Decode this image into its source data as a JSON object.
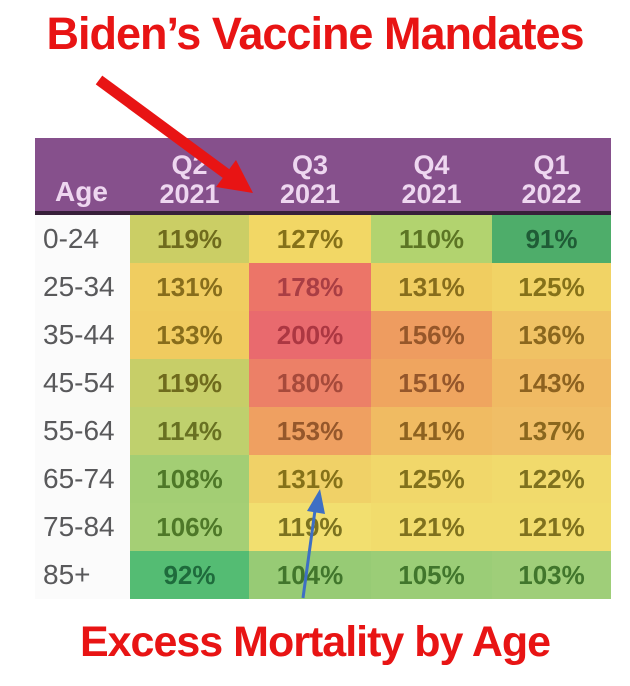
{
  "title": "Biden’s Vaccine Mandates",
  "caption": "Excess Mortality by Age",
  "colors": {
    "caption_red": "#e81414",
    "red_arrow": "#e81414",
    "blue_arrow": "#3e6fc4",
    "header_purple": "#86508c",
    "header_text": "#eed7f0",
    "header_divider": "#38203a",
    "age_text_grey": "#59595b"
  },
  "annotations": {
    "red_arrow": "points from title down to the Q3 2021 column header",
    "blue_arrow": "points up at the 131% value (age 65-74, Q3 2021)"
  },
  "table": {
    "age_header": "Age",
    "columns": [
      {
        "q": "Q2",
        "year": "2021"
      },
      {
        "q": "Q3",
        "year": "2021"
      },
      {
        "q": "Q4",
        "year": "2021"
      },
      {
        "q": "Q1",
        "year": "2022"
      }
    ],
    "rows": [
      {
        "age": "0-24",
        "cells": [
          {
            "value": "119%",
            "bg": "#cbce65",
            "fg": "#6f6b1d"
          },
          {
            "value": "127%",
            "bg": "#f2d765",
            "fg": "#857119"
          },
          {
            "value": "110%",
            "bg": "#b2d36f",
            "fg": "#5c7524"
          },
          {
            "value": "91%",
            "bg": "#4ead6a",
            "fg": "#1f5c36"
          }
        ]
      },
      {
        "age": "25-34",
        "cells": [
          {
            "value": "131%",
            "bg": "#f0cd60",
            "fg": "#876d1c"
          },
          {
            "value": "178%",
            "bg": "#ec7568",
            "fg": "#a93e44"
          },
          {
            "value": "131%",
            "bg": "#f0cd60",
            "fg": "#876d1c"
          },
          {
            "value": "125%",
            "bg": "#f1d365",
            "fg": "#857119"
          }
        ]
      },
      {
        "age": "35-44",
        "cells": [
          {
            "value": "133%",
            "bg": "#f0cb5f",
            "fg": "#886d1b"
          },
          {
            "value": "200%",
            "bg": "#e96a6e",
            "fg": "#ac3742"
          },
          {
            "value": "156%",
            "bg": "#ee9c60",
            "fg": "#96572a"
          },
          {
            "value": "136%",
            "bg": "#f0c264",
            "fg": "#8a671e"
          }
        ]
      },
      {
        "age": "45-54",
        "cells": [
          {
            "value": "119%",
            "bg": "#c7ce68",
            "fg": "#6f6b1d"
          },
          {
            "value": "180%",
            "bg": "#ec8067",
            "fg": "#a64a3b"
          },
          {
            "value": "151%",
            "bg": "#efa55f",
            "fg": "#95572b"
          },
          {
            "value": "143%",
            "bg": "#f0ba63",
            "fg": "#8d6220"
          }
        ]
      },
      {
        "age": "55-64",
        "cells": [
          {
            "value": "114%",
            "bg": "#bfd06d",
            "fg": "#687122"
          },
          {
            "value": "153%",
            "bg": "#efa061",
            "fg": "#95572b"
          },
          {
            "value": "141%",
            "bg": "#f0bb62",
            "fg": "#8d6220"
          },
          {
            "value": "137%",
            "bg": "#f0be66",
            "fg": "#8a671e"
          }
        ]
      },
      {
        "age": "65-74",
        "cells": [
          {
            "value": "108%",
            "bg": "#a3ce74",
            "fg": "#4e7828"
          },
          {
            "value": "131%",
            "bg": "#f0d167",
            "fg": "#857119"
          },
          {
            "value": "125%",
            "bg": "#f1d76a",
            "fg": "#82711c"
          },
          {
            "value": "122%",
            "bg": "#f1da6c",
            "fg": "#7f711e"
          }
        ]
      },
      {
        "age": "75-84",
        "cells": [
          {
            "value": "106%",
            "bg": "#a5cf75",
            "fg": "#4e7828"
          },
          {
            "value": "119%",
            "bg": "#f2df6f",
            "fg": "#7c721f"
          },
          {
            "value": "121%",
            "bg": "#f1dc6c",
            "fg": "#7f711e"
          },
          {
            "value": "121%",
            "bg": "#f1dc6c",
            "fg": "#7f711e"
          }
        ]
      },
      {
        "age": "85+",
        "cells": [
          {
            "value": "92%",
            "bg": "#54bc73",
            "fg": "#1e6b3c"
          },
          {
            "value": "104%",
            "bg": "#97cb75",
            "fg": "#41762c"
          },
          {
            "value": "105%",
            "bg": "#9bcd77",
            "fg": "#41762c"
          },
          {
            "value": "103%",
            "bg": "#9fce79",
            "fg": "#41762c"
          }
        ]
      }
    ]
  },
  "chart_data": {
    "type": "heatmap",
    "title": "Excess Mortality by Age",
    "rows": [
      "0-24",
      "25-34",
      "35-44",
      "45-54",
      "55-64",
      "65-74",
      "75-84",
      "85+"
    ],
    "columns": [
      "Q2 2021",
      "Q3 2021",
      "Q4 2021",
      "Q1 2022"
    ],
    "values": [
      [
        119,
        127,
        110,
        91
      ],
      [
        131,
        178,
        131,
        125
      ],
      [
        133,
        200,
        156,
        136
      ],
      [
        119,
        180,
        151,
        143
      ],
      [
        114,
        153,
        141,
        137
      ],
      [
        108,
        131,
        125,
        122
      ],
      [
        106,
        119,
        121,
        121
      ],
      [
        92,
        104,
        105,
        103
      ]
    ],
    "unit": "%",
    "color_scale": "green (low) → yellow → red (high)"
  }
}
